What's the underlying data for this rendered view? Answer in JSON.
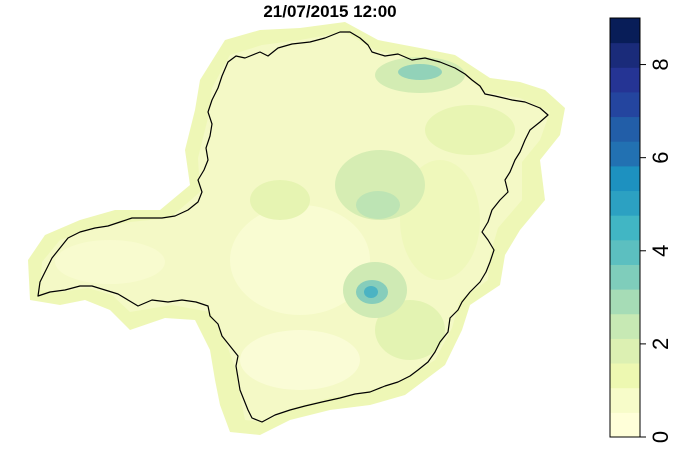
{
  "map": {
    "title": "21/07/2015 12:00"
  },
  "legend": {
    "min": 0,
    "max": 9,
    "ticks": [
      "0",
      "2",
      "4",
      "6",
      "8"
    ],
    "palette": [
      "#ffffd9",
      "#f7fcc9",
      "#edf8b1",
      "#dcf0b2",
      "#c7e9b4",
      "#a6dcb6",
      "#7fcdbb",
      "#5cbfc0",
      "#41b6c4",
      "#2ca1c2",
      "#1d91c0",
      "#2271b2",
      "#225ea8",
      "#24459f",
      "#253494",
      "#1a2b7a",
      "#081d58"
    ]
  },
  "map_values": {
    "base_level": 0.8,
    "hotspot_north_level": 3.5,
    "hotspot_central_level": 2.2,
    "hotspot_south_level": 4.0
  }
}
